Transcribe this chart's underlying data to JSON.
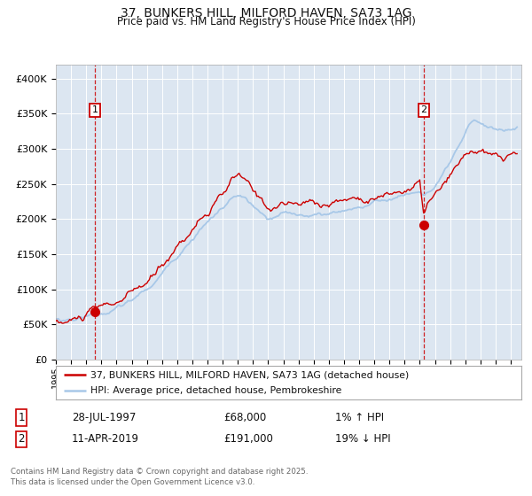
{
  "title": "37, BUNKERS HILL, MILFORD HAVEN, SA73 1AG",
  "subtitle": "Price paid vs. HM Land Registry's House Price Index (HPI)",
  "title_fontsize": 10,
  "subtitle_fontsize": 8.5,
  "bg_color": "#ffffff",
  "plot_bg_color": "#dce6f1",
  "grid_color": "#ffffff",
  "red_line_color": "#cc0000",
  "blue_line_color": "#a8c8e8",
  "marker_color": "#cc0000",
  "dashed_line_color": "#cc0000",
  "sale1_x": 1997.57,
  "sale1_y": 68000,
  "sale1_label": "1",
  "sale2_x": 2019.27,
  "sale2_y": 191000,
  "sale2_label": "2",
  "xmin": 1995.0,
  "xmax": 2025.7,
  "ymin": 0,
  "ymax": 420000,
  "yticks": [
    0,
    50000,
    100000,
    150000,
    200000,
    250000,
    300000,
    350000,
    400000
  ],
  "ytick_labels": [
    "£0",
    "£50K",
    "£100K",
    "£150K",
    "£200K",
    "£250K",
    "£300K",
    "£350K",
    "£400K"
  ],
  "legend_red_label": "37, BUNKERS HILL, MILFORD HAVEN, SA73 1AG (detached house)",
  "legend_blue_label": "HPI: Average price, detached house, Pembrokeshire",
  "note1_label": "1",
  "note1_date": "28-JUL-1997",
  "note1_price": "£68,000",
  "note1_hpi": "1% ↑ HPI",
  "note2_label": "2",
  "note2_date": "11-APR-2019",
  "note2_price": "£191,000",
  "note2_hpi": "19% ↓ HPI",
  "footer": "Contains HM Land Registry data © Crown copyright and database right 2025.\nThis data is licensed under the Open Government Licence v3.0."
}
